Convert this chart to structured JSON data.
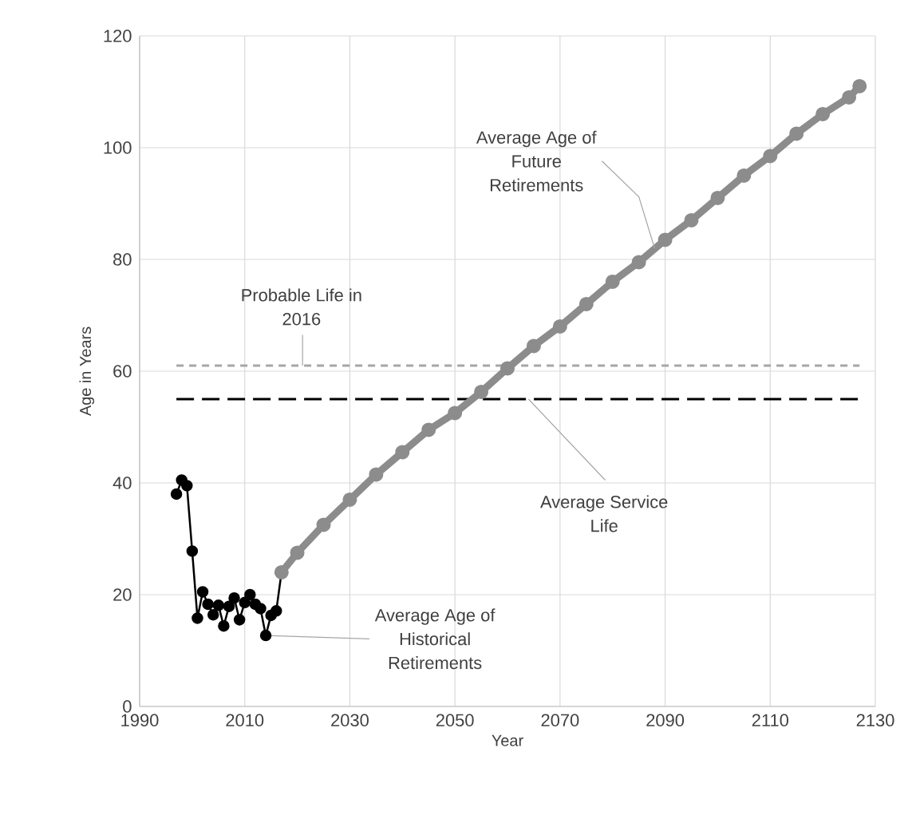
{
  "chart_data": {
    "type": "line",
    "xlabel": "Year",
    "ylabel": "Age in Years",
    "xlim": [
      1990,
      2130
    ],
    "ylim": [
      0,
      120
    ],
    "xticks": [
      1990,
      2010,
      2030,
      2050,
      2070,
      2090,
      2110,
      2130
    ],
    "yticks": [
      0,
      20,
      40,
      60,
      80,
      100,
      120
    ],
    "grid": true,
    "series": [
      {
        "color": "#000000",
        "marker": "circle",
        "x": [
          1997,
          1998,
          1999,
          2000,
          2001,
          2002,
          2003,
          2004,
          2005,
          2006,
          2007,
          2008,
          2009,
          2010,
          2011,
          2012,
          2013,
          2014,
          2015,
          2016,
          2017
        ],
        "values": [
          38,
          40.5,
          39.5,
          27.8,
          15.8,
          20.5,
          18.3,
          16.4,
          18.1,
          14.4,
          17.9,
          19.4,
          15.5,
          18.6,
          20,
          18.3,
          17.5,
          12.7,
          16.3,
          17.1,
          24
        ]
      },
      {
        "color": "#8c8c8c",
        "marker": "circle",
        "x": [
          2017,
          2020,
          2025,
          2030,
          2035,
          2040,
          2045,
          2050,
          2055,
          2060,
          2065,
          2070,
          2075,
          2080,
          2085,
          2090,
          2095,
          2100,
          2105,
          2110,
          2115,
          2120,
          2125,
          2127
        ],
        "values": [
          24,
          27.5,
          32.5,
          37,
          41.5,
          45.5,
          49.5,
          52.5,
          56.3,
          60.5,
          64.5,
          68,
          72,
          76,
          79.5,
          83.5,
          87,
          91,
          95,
          98.5,
          102.5,
          106,
          109,
          111
        ]
      }
    ],
    "ref_lines": [
      {
        "axis": "y",
        "value": 61,
        "label": "Probable Life in 2016",
        "color": "#a6a6a6",
        "line_style": "dotted"
      },
      {
        "axis": "y",
        "value": 55,
        "label": "Average Service Life",
        "color": "#000000",
        "line_style": "dashed"
      }
    ],
    "annotations": [
      {
        "text": "Average Age of Future Retirements",
        "x": 2088,
        "y": 82
      },
      {
        "text": "Average Age of Historical Retirements",
        "x": 2014,
        "y": 12.7
      }
    ]
  }
}
